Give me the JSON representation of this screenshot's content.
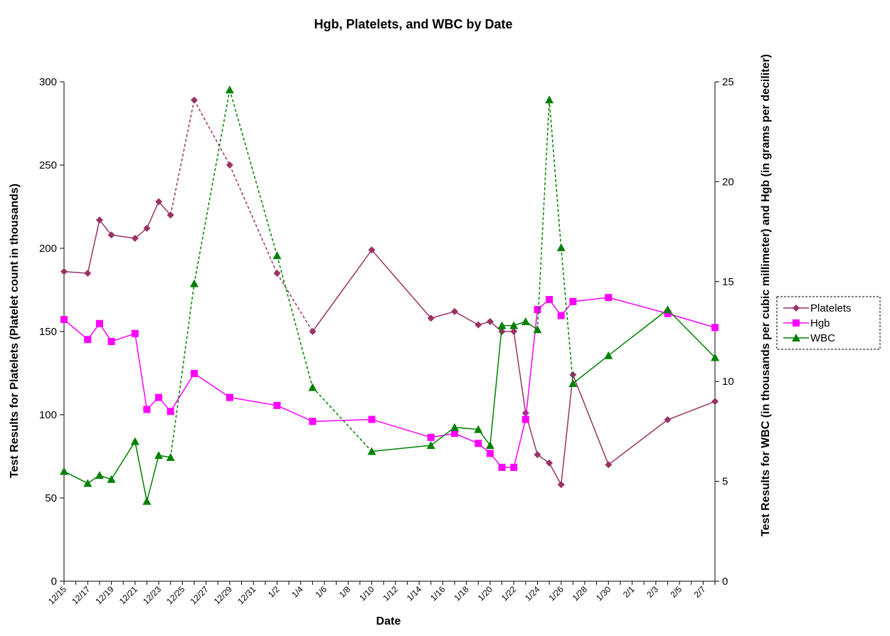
{
  "chart_data": {
    "type": "line",
    "title": "Hgb, Platelets, and WBC by Date",
    "xlabel": "Date",
    "ylabel_left": "Test Results for Platelets (Platelet count in thousands)",
    "ylabel_right": "Test Results for WBC (in thousands per cubic millimeter) and Hgb (in grams per deciliter)",
    "ylim_left": [
      0,
      300
    ],
    "ylim_right": [
      0,
      25
    ],
    "yticks_left": [
      "0",
      "50",
      "100",
      "150",
      "200",
      "250",
      "300"
    ],
    "yticks_right": [
      "0",
      "5",
      "10",
      "15",
      "20",
      "25"
    ],
    "x_range_days": [
      "12/15",
      "2/8"
    ],
    "xticks": [
      "12/15",
      "12/17",
      "12/19",
      "12/21",
      "12/23",
      "12/25",
      "12/27",
      "12/29",
      "12/31",
      "1/2",
      "1/4",
      "1/6",
      "1/8",
      "1/10",
      "1/12",
      "1/14",
      "1/16",
      "1/18",
      "1/20",
      "1/22",
      "1/24",
      "1/26",
      "1/28",
      "1/30",
      "2/1",
      "2/3",
      "2/5",
      "2/7"
    ],
    "legend_position": "right",
    "series": [
      {
        "name": "Platelets",
        "axis": "left",
        "color": "#993366",
        "marker": "diamond",
        "points": [
          {
            "x": "12/15",
            "y": 186
          },
          {
            "x": "12/17",
            "y": 185
          },
          {
            "x": "12/18",
            "y": 217
          },
          {
            "x": "12/19",
            "y": 208
          },
          {
            "x": "12/21",
            "y": 206
          },
          {
            "x": "12/22",
            "y": 212
          },
          {
            "x": "12/23",
            "y": 228
          },
          {
            "x": "12/24",
            "y": 220
          },
          {
            "x": "12/26",
            "y": 289,
            "dashed_from_prev": true
          },
          {
            "x": "12/29",
            "y": 250,
            "dashed_from_prev": true
          },
          {
            "x": "1/2",
            "y": 185,
            "dashed_from_prev": true
          },
          {
            "x": "1/5",
            "y": 150,
            "dashed_from_prev": true
          },
          {
            "x": "1/10",
            "y": 199
          },
          {
            "x": "1/15",
            "y": 158
          },
          {
            "x": "1/17",
            "y": 162
          },
          {
            "x": "1/19",
            "y": 154
          },
          {
            "x": "1/20",
            "y": 156
          },
          {
            "x": "1/21",
            "y": 150
          },
          {
            "x": "1/22",
            "y": 150
          },
          {
            "x": "1/23",
            "y": 101
          },
          {
            "x": "1/24",
            "y": 76
          },
          {
            "x": "1/25",
            "y": 71
          },
          {
            "x": "1/26",
            "y": 58
          },
          {
            "x": "1/27",
            "y": 124
          },
          {
            "x": "1/30",
            "y": 70
          },
          {
            "x": "2/4",
            "y": 97
          },
          {
            "x": "2/8",
            "y": 108
          }
        ]
      },
      {
        "name": "Hgb",
        "axis": "right",
        "color": "#FF00FF",
        "marker": "square",
        "points": [
          {
            "x": "12/15",
            "y": 13.1
          },
          {
            "x": "12/17",
            "y": 12.1
          },
          {
            "x": "12/18",
            "y": 12.9
          },
          {
            "x": "12/19",
            "y": 12.0
          },
          {
            "x": "12/21",
            "y": 12.4
          },
          {
            "x": "12/22",
            "y": 8.6
          },
          {
            "x": "12/23",
            "y": 9.2
          },
          {
            "x": "12/24",
            "y": 8.5
          },
          {
            "x": "12/26",
            "y": 10.4
          },
          {
            "x": "12/29",
            "y": 9.2
          },
          {
            "x": "1/2",
            "y": 8.8
          },
          {
            "x": "1/5",
            "y": 8.0
          },
          {
            "x": "1/10",
            "y": 8.1
          },
          {
            "x": "1/15",
            "y": 7.2
          },
          {
            "x": "1/17",
            "y": 7.4
          },
          {
            "x": "1/19",
            "y": 6.9
          },
          {
            "x": "1/20",
            "y": 6.4
          },
          {
            "x": "1/21",
            "y": 5.7
          },
          {
            "x": "1/22",
            "y": 5.7
          },
          {
            "x": "1/23",
            "y": 8.1
          },
          {
            "x": "1/24",
            "y": 13.6
          },
          {
            "x": "1/25",
            "y": 14.1
          },
          {
            "x": "1/26",
            "y": 13.3
          },
          {
            "x": "1/27",
            "y": 14.0
          },
          {
            "x": "1/30",
            "y": 14.2
          },
          {
            "x": "2/4",
            "y": 13.4
          },
          {
            "x": "2/8",
            "y": 12.7
          }
        ]
      },
      {
        "name": "WBC",
        "axis": "right",
        "color": "#008000",
        "marker": "triangle",
        "points": [
          {
            "x": "12/15",
            "y": 5.5
          },
          {
            "x": "12/17",
            "y": 4.9
          },
          {
            "x": "12/18",
            "y": 5.3
          },
          {
            "x": "12/19",
            "y": 5.1
          },
          {
            "x": "12/21",
            "y": 7.0
          },
          {
            "x": "12/22",
            "y": 4.0
          },
          {
            "x": "12/23",
            "y": 6.3
          },
          {
            "x": "12/24",
            "y": 6.2
          },
          {
            "x": "12/26",
            "y": 14.9,
            "dashed_from_prev": true
          },
          {
            "x": "12/29",
            "y": 24.6,
            "dashed_from_prev": true
          },
          {
            "x": "1/2",
            "y": 16.3,
            "dashed_from_prev": true
          },
          {
            "x": "1/5",
            "y": 9.7,
            "dashed_from_prev": true
          },
          {
            "x": "1/10",
            "y": 6.5,
            "dashed_from_prev": true
          },
          {
            "x": "1/15",
            "y": 6.8
          },
          {
            "x": "1/17",
            "y": 7.7
          },
          {
            "x": "1/19",
            "y": 7.6
          },
          {
            "x": "1/20",
            "y": 6.8
          },
          {
            "x": "1/21",
            "y": 12.8
          },
          {
            "x": "1/22",
            "y": 12.8
          },
          {
            "x": "1/23",
            "y": 13.0
          },
          {
            "x": "1/24",
            "y": 12.6
          },
          {
            "x": "1/25",
            "y": 24.1,
            "dashed_from_prev": true
          },
          {
            "x": "1/26",
            "y": 16.7,
            "dashed_from_prev": true
          },
          {
            "x": "1/27",
            "y": 9.9,
            "dashed_from_prev": true
          },
          {
            "x": "1/30",
            "y": 11.3
          },
          {
            "x": "2/4",
            "y": 13.6
          },
          {
            "x": "2/8",
            "y": 11.2
          }
        ]
      }
    ]
  }
}
